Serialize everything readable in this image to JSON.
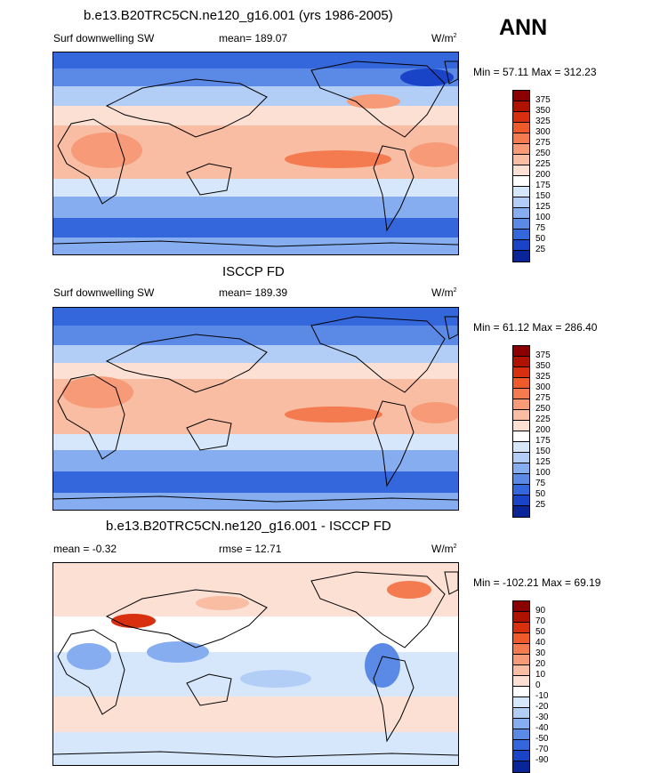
{
  "season": "ANN",
  "panels": [
    {
      "title": "b.e13.B20TRC5CN.ne120_g16.001 (yrs 1986-2005)",
      "left_label": "Surf downwelling SW",
      "center_label": "mean= 189.07",
      "units": "W/m",
      "units_sup": "2",
      "minmax": "Min =  57.11 Max = 312.23",
      "colorbar": {
        "labels": [
          "375",
          "350",
          "325",
          "300",
          "275",
          "250",
          "225",
          "200",
          "175",
          "150",
          "125",
          "100",
          "75",
          "50",
          "25"
        ],
        "colors": [
          "#8b0000",
          "#b01200",
          "#d8300f",
          "#ef5a2a",
          "#f47a4f",
          "#f79a78",
          "#f9bda4",
          "#fbe0d3",
          "#ffffff",
          "#d6e6fb",
          "#b2cef6",
          "#86adef",
          "#5a8ae6",
          "#3567dc",
          "#1a44c8",
          "#0a2598"
        ]
      }
    },
    {
      "title": "ISCCP FD",
      "left_label": "Surf downwelling SW",
      "center_label": "mean= 189.39",
      "units": "W/m",
      "units_sup": "2",
      "minmax": "Min =  61.12 Max = 286.40",
      "colorbar": {
        "labels": [
          "375",
          "350",
          "325",
          "300",
          "275",
          "250",
          "225",
          "200",
          "175",
          "150",
          "125",
          "100",
          "75",
          "50",
          "25"
        ],
        "colors": [
          "#8b0000",
          "#b01200",
          "#d8300f",
          "#ef5a2a",
          "#f47a4f",
          "#f79a78",
          "#f9bda4",
          "#fbe0d3",
          "#ffffff",
          "#d6e6fb",
          "#b2cef6",
          "#86adef",
          "#5a8ae6",
          "#3567dc",
          "#1a44c8",
          "#0a2598"
        ]
      }
    },
    {
      "title": "b.e13.B20TRC5CN.ne120_g16.001 - ISCCP FD",
      "left_label": "mean =  -0.32",
      "center_label": "rmse =  12.71",
      "units": "W/m",
      "units_sup": "2",
      "minmax": "Min = -102.21 Max =  69.19",
      "colorbar": {
        "labels": [
          "90",
          "70",
          "50",
          "40",
          "30",
          "20",
          "10",
          "0",
          "-10",
          "-20",
          "-30",
          "-40",
          "-50",
          "-70",
          "-90"
        ],
        "colors": [
          "#8b0000",
          "#b01200",
          "#d8300f",
          "#ef5a2a",
          "#f47a4f",
          "#f79a78",
          "#f9bda4",
          "#fbe0d3",
          "#ffffff",
          "#d6e6fb",
          "#b2cef6",
          "#86adef",
          "#5a8ae6",
          "#3567dc",
          "#1a44c8",
          "#0a2598"
        ]
      }
    }
  ]
}
